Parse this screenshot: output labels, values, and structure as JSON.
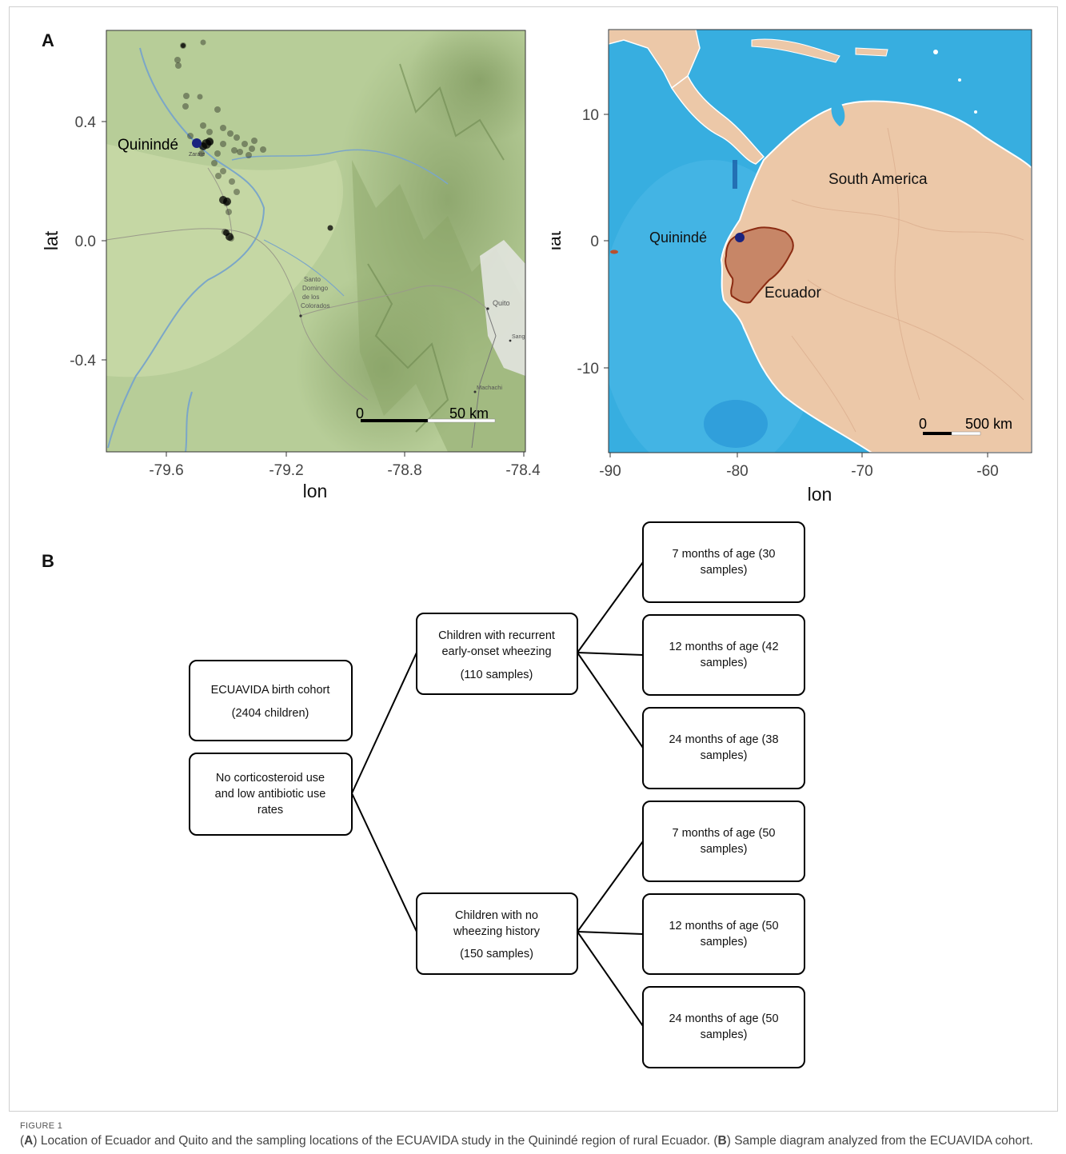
{
  "panels": {
    "a": "A",
    "b": "B"
  },
  "map_left": {
    "xlabel": "lon",
    "ylabel": "lat",
    "x_ticks": [
      "-79.6",
      "-79.2",
      "-78.8",
      "-78.4"
    ],
    "y_ticks": [
      "0.4",
      "0.0",
      "-0.4"
    ],
    "location_label": "Quinindé",
    "place_names": [
      "Zarate",
      "Santo Domingo de los Colorados",
      "Quito",
      "Machachi",
      "Sang"
    ],
    "scalebar": {
      "start": "0",
      "end": "50 km"
    },
    "colors": {
      "points": "#000000",
      "quininde": "#1a237e",
      "terrain": "#a9c28a"
    }
  },
  "map_right": {
    "xlabel": "lon",
    "ylabel": "lat",
    "x_ticks": [
      "-90",
      "-80",
      "-70",
      "-60"
    ],
    "y_ticks": [
      "10",
      "0",
      "-10"
    ],
    "labels": {
      "south_america": "South America",
      "quininde": "Quinindé",
      "ecuador": "Ecuador"
    },
    "scalebar": {
      "start": "0",
      "end": "500 km"
    },
    "colors": {
      "ocean": "#37aee0",
      "land": "#ecc8a8",
      "ecuador": "#b86a4c"
    }
  },
  "diagram": {
    "cohort": {
      "line1": "ECUAVIDA birth cohort",
      "line2": "(2404 children)"
    },
    "criteria": {
      "line1": "No corticosteroid use",
      "line2": "and low antibiotic use",
      "line3": "rates"
    },
    "wheeze": {
      "line1": "Children with recurrent",
      "line2": "early-onset wheezing",
      "line3": "(110 samples)"
    },
    "nowheeze": {
      "line1": "Children with no",
      "line2": "wheezing history",
      "line3": "(150 samples)"
    },
    "w7": {
      "line1": "7 months of age (30",
      "line2": "samples)"
    },
    "w12": {
      "line1": "12 months of age (42",
      "line2": "samples)"
    },
    "w24": {
      "line1": "24 months of age (38",
      "line2": "samples)"
    },
    "n7": {
      "line1": "7 months of age (50",
      "line2": "samples)"
    },
    "n12": {
      "line1": "12 months of age (50",
      "line2": "samples)"
    },
    "n24": {
      "line1": "24 months of age (50",
      "line2": "samples)"
    }
  },
  "caption": {
    "label": "FIGURE 1",
    "a": "A",
    "text1": ") Location of Ecuador and Quito and the sampling locations of the ECUAVIDA study in the Quinindé region of rural Ecuador. (",
    "b": "B",
    "text2": ") Sample diagram analyzed from the ECUAVIDA cohort."
  }
}
